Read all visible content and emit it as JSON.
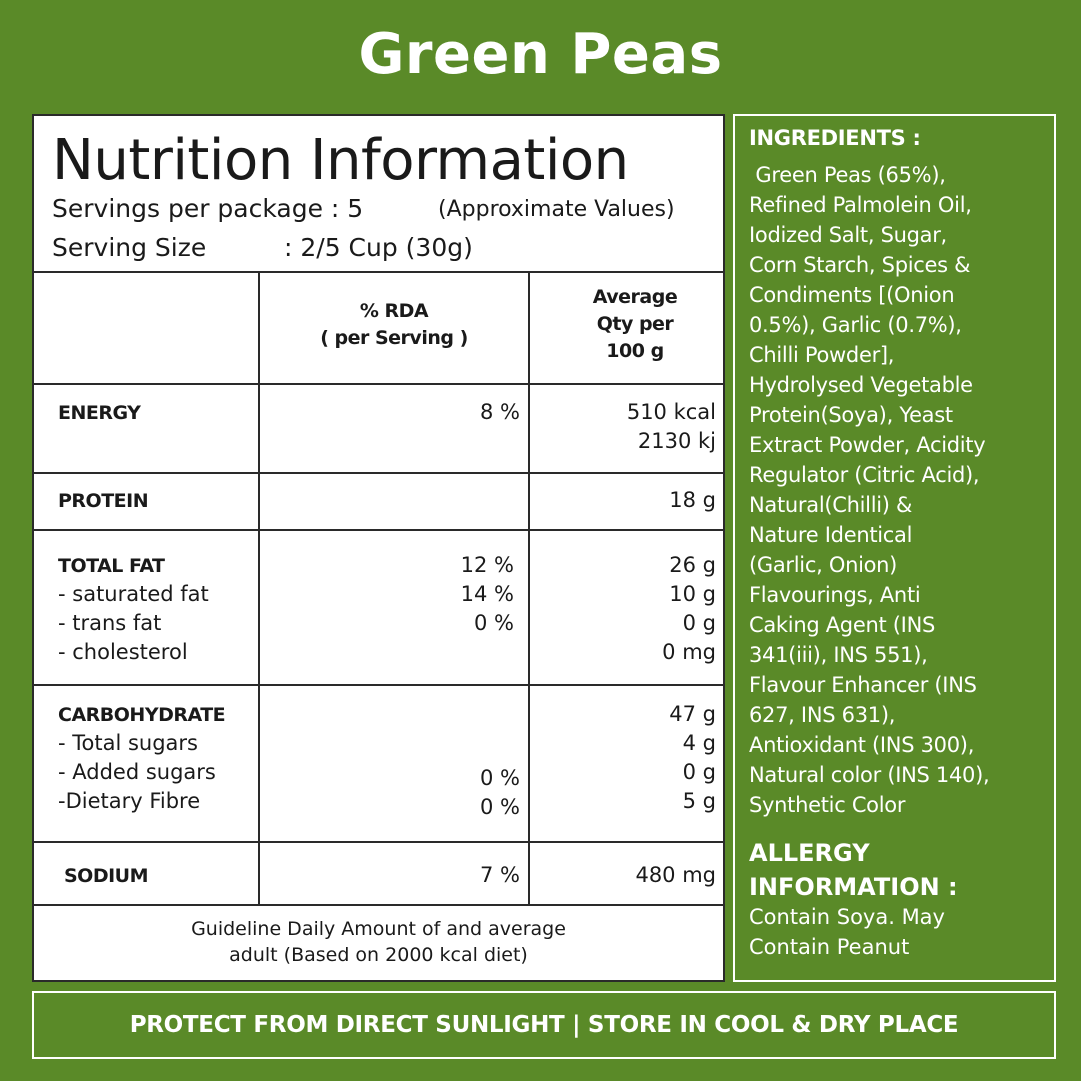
{
  "product_title": "Green Peas",
  "nutrition": {
    "title": "Nutrition Information",
    "servings_per_package": "Servings per package : 5",
    "approx_note": "(Approximate Values)",
    "serving_size_label": "Serving Size",
    "serving_size_value": ": 2/5 Cup (30g)",
    "col_rda_line1": "% RDA",
    "col_rda_line2": "( per Serving )",
    "col_qty_line1": "Average",
    "col_qty_line2": "Qty per",
    "col_qty_line3": "100 g",
    "rows": {
      "energy": {
        "label": "ENERGY",
        "rda": "8 %",
        "qty1": "510 kcal",
        "qty2": "2130 kj"
      },
      "protein": {
        "label": "PROTEIN",
        "qty": "18 g"
      },
      "fat": {
        "label": "TOTAL FAT",
        "rda": "12 %",
        "qty": "26 g",
        "sat_label": "- saturated fat",
        "sat_rda": "14 %",
        "sat_qty": "10 g",
        "trans_label": "- trans fat",
        "trans_rda": "0 %",
        "trans_qty": "0 g",
        "chol_label": "- cholesterol",
        "chol_qty": "0 mg"
      },
      "carb": {
        "label": "CARBOHYDRATE",
        "qty": "47 g",
        "sugars_label": "- Total sugars",
        "sugars_qty": "4 g",
        "added_label": "- Added sugars",
        "added_rda": "0 %",
        "added_qty": "0 g",
        "fibre_label": "-Dietary Fibre",
        "fibre_rda": "0 %",
        "fibre_qty": "5 g"
      },
      "sodium": {
        "label": "SODIUM",
        "rda": "7 %",
        "qty": "480 mg"
      }
    },
    "footnote_line1": "Guideline Daily Amount of and average",
    "footnote_line2": "adult (Based on 2000 kcal diet)"
  },
  "ingredients": {
    "heading": "INGREDIENTS :",
    "lines": [
      " Green Peas (65%),",
      "Refined Palmolein Oil,",
      "Iodized Salt, Sugar,",
      "Corn Starch, Spices &",
      "Condiments [(Onion",
      "0.5%), Garlic (0.7%),",
      "Chilli Powder],",
      "Hydrolysed Vegetable",
      "Protein(Soya), Yeast",
      "Extract Powder, Acidity",
      "Regulator (Citric Acid),",
      "Natural(Chilli) &",
      "Nature Identical",
      "(Garlic, Onion)",
      "Flavourings, Anti",
      "Caking Agent (INS",
      "341(iii), INS 551),",
      "Flavour Enhancer (INS",
      "627, INS 631),",
      "Antioxidant (INS 300),",
      "Natural color (INS 140),",
      "Synthetic Color"
    ]
  },
  "allergy": {
    "heading_line1": "ALLERGY",
    "heading_line2": "INFORMATION :",
    "text_line1": "Contain Soya. May",
    "text_line2": "Contain Peanut"
  },
  "storage_banner": "PROTECT FROM DIRECT SUNLIGHT | STORE IN COOL & DRY PLACE",
  "colors": {
    "background": "#5a8a28",
    "panel": "#ffffff",
    "text": "#1a1a1a"
  }
}
